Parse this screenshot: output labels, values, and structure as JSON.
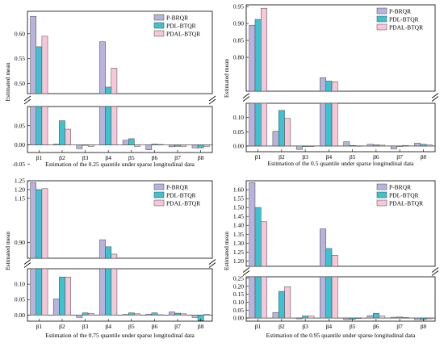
{
  "legend_labels": [
    "P-BRQR",
    "PDL-BTQR",
    "PDAL-BTQR"
  ],
  "series_colors": [
    "#b8b3dd",
    "#3cc3cf",
    "#f7c6d8"
  ],
  "categories": [
    "β1",
    "β2",
    "β3",
    "β4",
    "β5",
    "β6",
    "β7",
    "β8"
  ],
  "chart_data": [
    {
      "type": "bar",
      "xlabel": "Estimation of the 0.25 quantile under sparse longitudinal data",
      "ylabel": "Estimated mean",
      "axis_break": {
        "lower": [
          -0.02,
          0.1
        ],
        "upper": [
          0.48,
          0.645
        ]
      },
      "lower_ticks": [
        "-0.05",
        "0.00",
        "0.05"
      ],
      "upper_ticks": [
        "0.50",
        "0.55",
        "0.60"
      ],
      "categories": [
        "β1",
        "β2",
        "β3",
        "β4",
        "β5",
        "β6",
        "β7",
        "β8"
      ],
      "series": [
        {
          "name": "P-BRQR",
          "values": [
            0.635,
            0.002,
            -0.01,
            0.584,
            0.012,
            -0.013,
            -0.005,
            -0.008
          ]
        },
        {
          "name": "PDL-BTQR",
          "values": [
            0.574,
            0.063,
            -0.001,
            0.493,
            0.016,
            0.002,
            -0.004,
            -0.008
          ]
        },
        {
          "name": "PDAL-BTQR",
          "values": [
            0.595,
            0.041,
            -0.004,
            0.531,
            -0.004,
            0.001,
            -0.004,
            -0.004
          ]
        }
      ]
    },
    {
      "type": "bar",
      "xlabel": "Estimation of the 0.5 quantile under sparse longitudinal data",
      "ylabel": "Estimated mean",
      "axis_break": {
        "lower": [
          -0.02,
          0.15
        ],
        "upper": [
          0.7,
          0.955
        ]
      },
      "lower_ticks": [
        "0.00",
        "0.05",
        "0.10"
      ],
      "upper_ticks": [
        "0.80",
        "0.85",
        "0.90",
        "0.95"
      ],
      "categories": [
        "β1",
        "β2",
        "β3",
        "β4",
        "β5",
        "β6",
        "β7",
        "β8"
      ],
      "series": [
        {
          "name": "P-BRQR",
          "values": [
            0.895,
            0.052,
            -0.012,
            0.74,
            0.015,
            0.006,
            -0.01,
            0.01
          ]
        },
        {
          "name": "PDL-BTQR",
          "values": [
            0.912,
            0.125,
            -0.002,
            0.73,
            0.002,
            0.004,
            -0.001,
            0.006
          ]
        },
        {
          "name": "PDAL-BTQR",
          "values": [
            0.945,
            0.097,
            -0.002,
            0.728,
            0.001,
            0.003,
            0.002,
            0.004
          ]
        }
      ]
    },
    {
      "type": "bar",
      "xlabel": "Estimation of the 0.75 quantile under sparse longitudinal data",
      "ylabel": "Estimated mean",
      "axis_break": {
        "lower": [
          -0.02,
          0.15
        ],
        "upper": [
          0.81,
          1.25
        ]
      },
      "lower_ticks": [
        "0.00",
        "0.05",
        "0.10"
      ],
      "upper_ticks": [
        "0.90",
        "1.15",
        "1.20",
        "1.25"
      ],
      "categories": [
        "β1",
        "β2",
        "β3",
        "β4",
        "β5",
        "β6",
        "β7",
        "β8"
      ],
      "series": [
        {
          "name": "P-BRQR",
          "values": [
            1.24,
            0.052,
            -0.008,
            0.915,
            0.002,
            0.003,
            0.01,
            -0.008
          ]
        },
        {
          "name": "PDL-BTQR",
          "values": [
            1.2,
            0.123,
            0.007,
            0.875,
            0.007,
            0.007,
            0.006,
            -0.018
          ]
        },
        {
          "name": "PDAL-BTQR",
          "values": [
            1.205,
            0.123,
            0.005,
            0.833,
            0.004,
            0.001,
            0.004,
            0.002
          ]
        }
      ]
    },
    {
      "type": "bar",
      "xlabel": "Estimation of the 0.95 quantile under sparse longitudinal data",
      "ylabel": "Estimated mean",
      "axis_break": {
        "lower": [
          -0.02,
          0.26
        ],
        "upper": [
          1.17,
          1.65
        ]
      },
      "lower_ticks": [
        "0.00",
        "0.05",
        "0.10",
        "0.15",
        "0.20",
        "0.25"
      ],
      "upper_ticks": [
        "1.20",
        "1.25",
        "1.30",
        "1.35",
        "1.40",
        "1.45",
        "1.50",
        "1.55",
        "1.60"
      ],
      "categories": [
        "β1",
        "β2",
        "β3",
        "β4",
        "β5",
        "β6",
        "β7",
        "β8"
      ],
      "series": [
        {
          "name": "P-BRQR",
          "values": [
            1.64,
            0.035,
            -0.005,
            1.38,
            -0.01,
            0.015,
            0.005,
            -0.01
          ]
        },
        {
          "name": "PDL-BTQR",
          "values": [
            1.5,
            0.168,
            0.013,
            1.27,
            -0.008,
            0.03,
            0.006,
            -0.01
          ]
        },
        {
          "name": "PDAL-BTQR",
          "values": [
            1.42,
            0.198,
            0.012,
            1.232,
            -0.003,
            0.012,
            0.004,
            -0.005
          ]
        }
      ]
    }
  ]
}
